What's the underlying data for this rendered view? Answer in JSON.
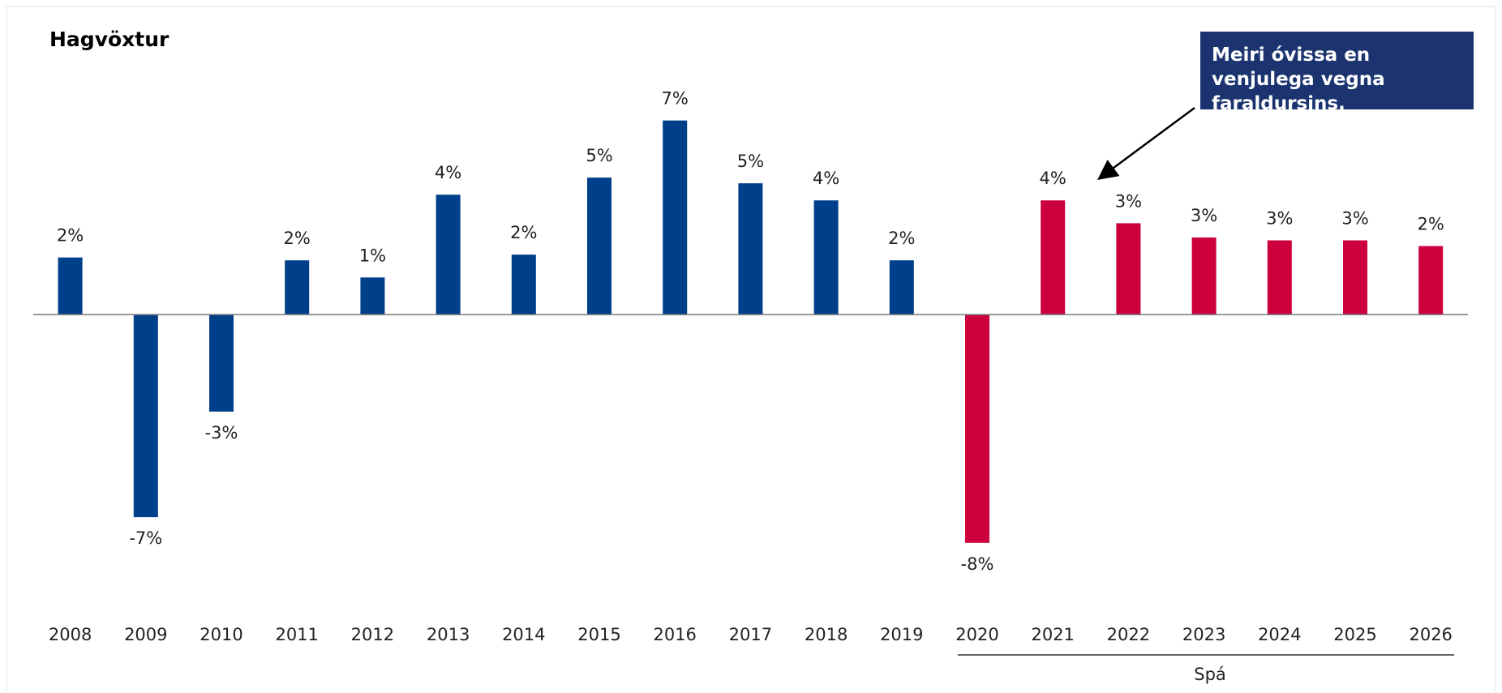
{
  "chart_data": {
    "type": "bar",
    "title": "Hagvöxtur",
    "categories": [
      "2008",
      "2009",
      "2010",
      "2011",
      "2012",
      "2013",
      "2014",
      "2015",
      "2016",
      "2017",
      "2018",
      "2019",
      "2020",
      "2021",
      "2022",
      "2023",
      "2024",
      "2025",
      "2026"
    ],
    "values": [
      2.0,
      -7.1,
      -3.4,
      1.9,
      1.3,
      4.2,
      2.1,
      4.8,
      6.8,
      4.6,
      4.0,
      1.9,
      -8.0,
      4.0,
      3.2,
      2.7,
      2.6,
      2.6,
      2.4
    ],
    "value_labels": [
      "2%",
      "-7%",
      "-3%",
      "2%",
      "1%",
      "4%",
      "2%",
      "5%",
      "7%",
      "5%",
      "4%",
      "2%",
      "-8%",
      "4%",
      "3%",
      "3%",
      "3%",
      "3%",
      "2%"
    ],
    "bar_colors": [
      "#003f8a",
      "#003f8a",
      "#003f8a",
      "#003f8a",
      "#003f8a",
      "#003f8a",
      "#003f8a",
      "#003f8a",
      "#003f8a",
      "#003f8a",
      "#003f8a",
      "#003f8a",
      "#cc003d",
      "#cc003d",
      "#cc003d",
      "#cc003d",
      "#cc003d",
      "#cc003d",
      "#cc003d"
    ],
    "ylim": [
      -9,
      8
    ],
    "annotation": "Meiri óvissa en venjulega vegna faraldursins.",
    "forecast_label": "Spá"
  }
}
